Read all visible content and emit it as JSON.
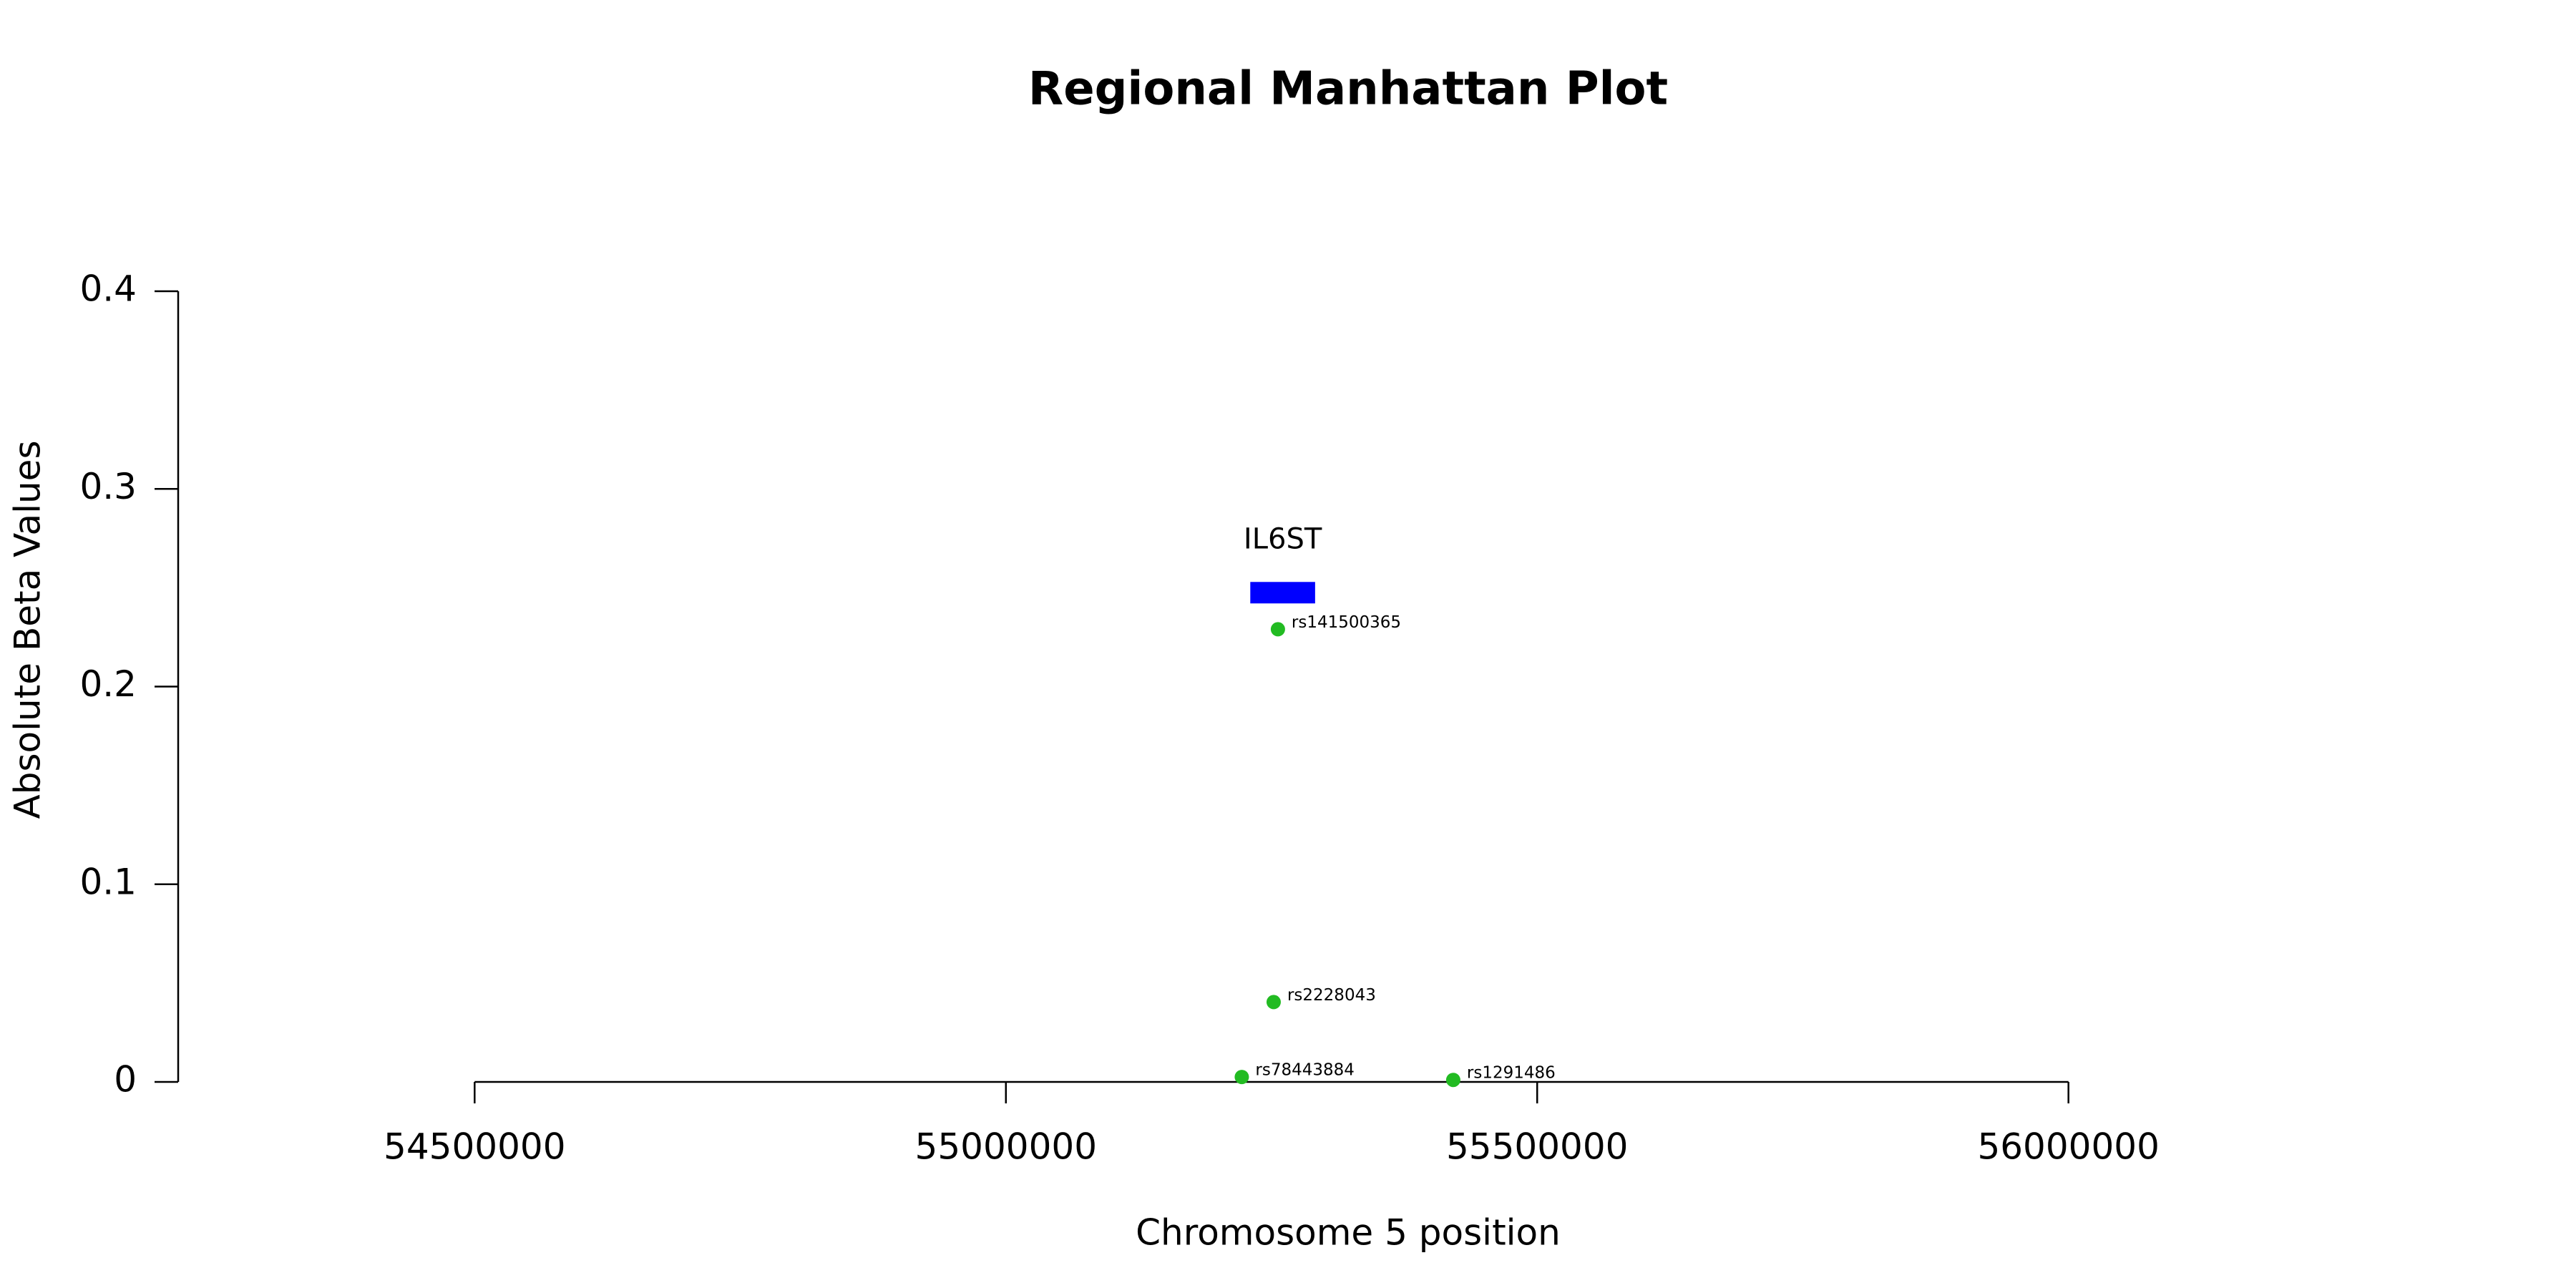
{
  "chart_data": {
    "type": "scatter",
    "title": "Regional Manhattan Plot",
    "x_label": "Chromosome 5 position",
    "y_label": "Absolute Beta Values",
    "series": [
      {
        "color": "#22bb22",
        "labels": [
          "rs141500365",
          "rs2228043",
          "rs78443884",
          "rs1291486"
        ],
        "x": [
          55256000,
          55252000,
          55222000,
          55421000
        ],
        "values": [
          0.229,
          0.0404,
          0.0025,
          0.001
        ]
      }
    ],
    "genes": [
      {
        "name": "IL6ST",
        "start": 55230000,
        "end": 55291000,
        "y": 0.2475,
        "color": "#0000ff"
      }
    ],
    "xlim": [
      54221000,
      56279000
    ],
    "xticks": [
      54500000,
      55000000,
      55500000,
      56000000
    ],
    "ylim": [
      0,
      0.4
    ],
    "yticks": [
      0.0,
      0.1,
      0.2,
      0.3,
      0.4
    ],
    "grid": false
  }
}
